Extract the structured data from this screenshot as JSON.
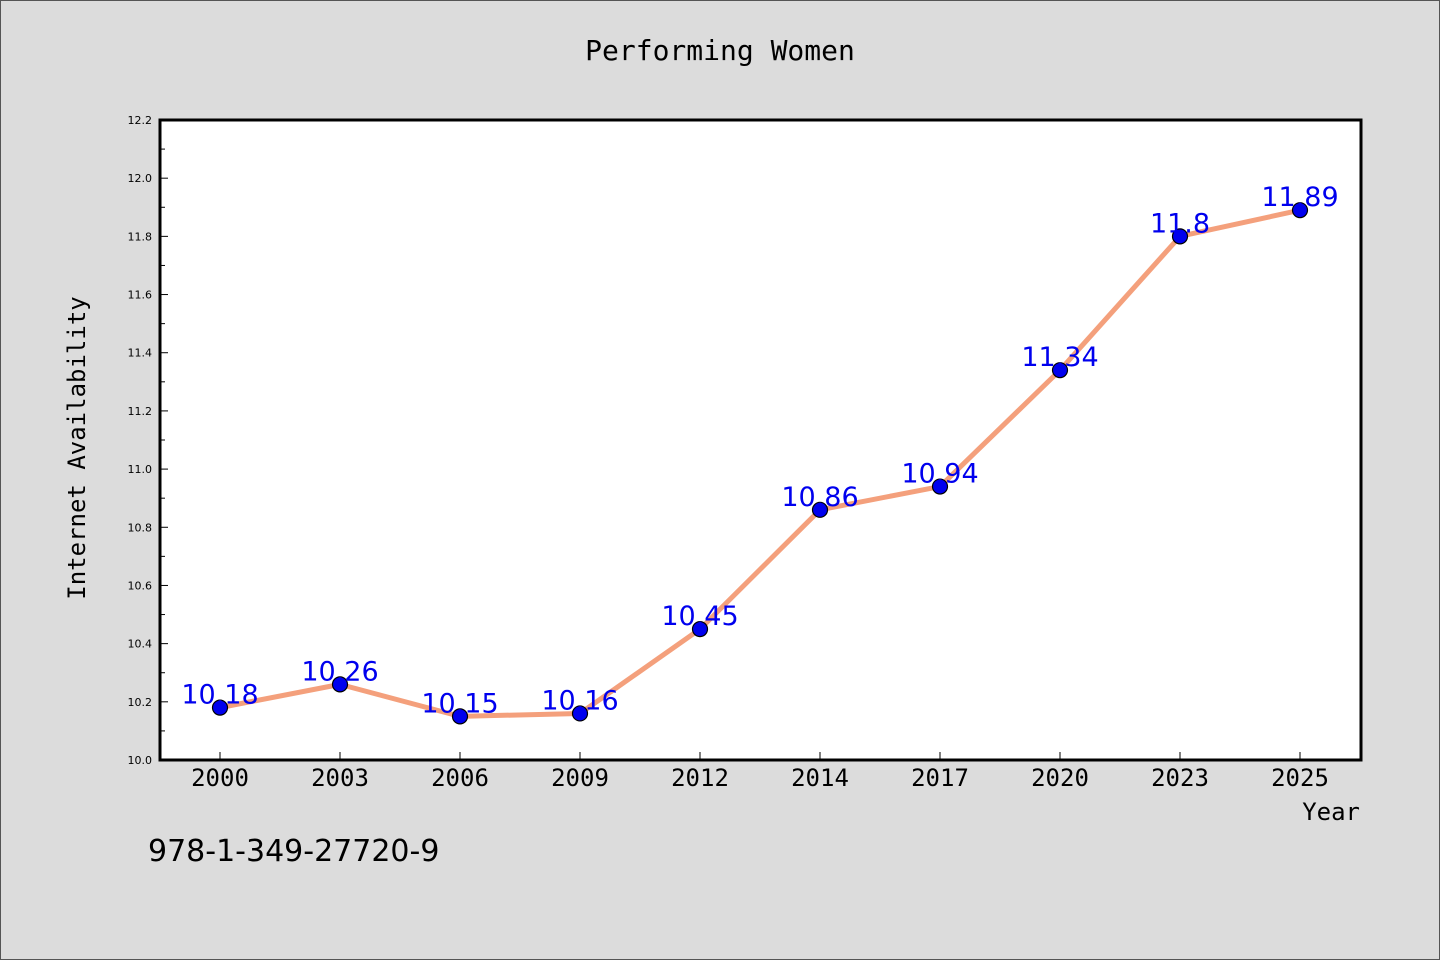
{
  "chart_data": {
    "type": "line",
    "title": "Performing Women",
    "xlabel": "Year",
    "ylabel": "Internet Availability",
    "categories": [
      "2000",
      "2003",
      "2006",
      "2009",
      "2012",
      "2014",
      "2017",
      "2020",
      "2023",
      "2025"
    ],
    "series": [
      {
        "values": [
          10.18,
          10.26,
          10.15,
          10.16,
          10.45,
          10.86,
          10.94,
          11.34,
          11.8,
          11.89
        ],
        "line_color": "#f4a07c",
        "marker_color": "#0000ee",
        "label_color": "#0000ee"
      }
    ],
    "data_labels": [
      "10.18",
      "10.26",
      "10.15",
      "10.16",
      "10.45",
      "10.86",
      "10.94",
      "11.34",
      "11.8",
      "11.89"
    ],
    "ylim": [
      10.0,
      12.2
    ],
    "yticks": [
      "10.0",
      "10.2",
      "10.4",
      "10.6",
      "10.8",
      "11.0",
      "11.2",
      "11.4",
      "11.6",
      "11.8",
      "12.0",
      "12.2"
    ],
    "grid": false,
    "legend": "none"
  },
  "footer": {
    "isbn": "978-1-349-27720-9"
  }
}
